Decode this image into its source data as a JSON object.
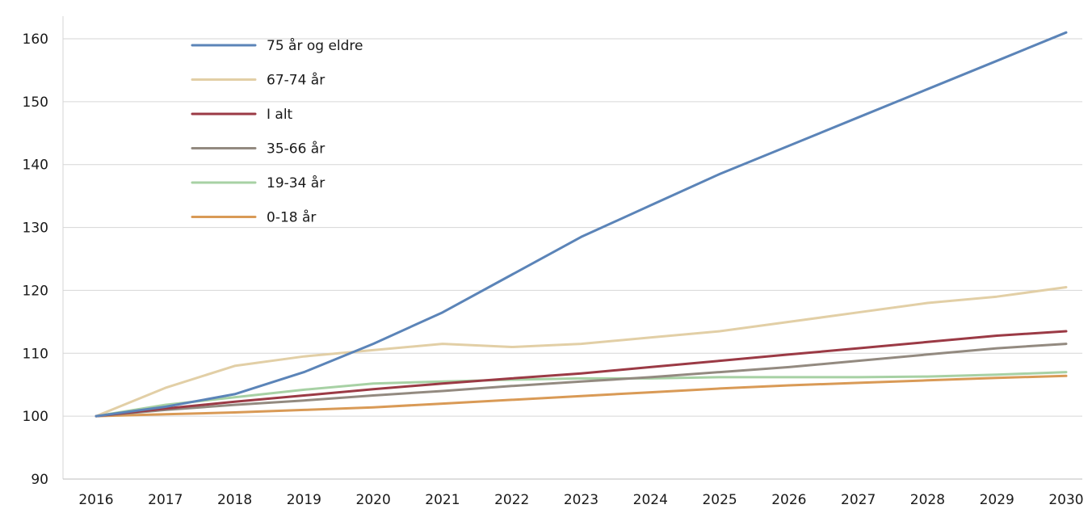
{
  "chart_data": {
    "type": "line",
    "title": "",
    "xlabel": "",
    "ylabel": "",
    "ylim": [
      90,
      160
    ],
    "yticks": [
      90,
      100,
      110,
      120,
      130,
      140,
      150,
      160
    ],
    "grid": "horizontal",
    "legend_placement": "top-left",
    "categories": [
      "2016",
      "2017",
      "2018",
      "2019",
      "2020",
      "2021",
      "2022",
      "2023",
      "2024",
      "2025",
      "2026",
      "2027",
      "2028",
      "2029",
      "2030"
    ],
    "series": [
      {
        "name": "75 år og eldre",
        "color": "#5b84b8",
        "values": [
          100,
          101.5,
          103.5,
          107,
          111.5,
          116.5,
          122.5,
          128.5,
          133.5,
          138.5,
          143,
          147.5,
          152,
          156.5,
          161
        ]
      },
      {
        "name": "67-74 år",
        "color": "#e2cfa6",
        "values": [
          100,
          104.5,
          108,
          109.5,
          110.5,
          111.5,
          111,
          111.5,
          112.5,
          113.5,
          115,
          116.5,
          118,
          119,
          120.5
        ]
      },
      {
        "name": "I alt",
        "color": "#9b3a45",
        "values": [
          100,
          101.2,
          102.3,
          103.3,
          104.3,
          105.2,
          106,
          106.8,
          107.8,
          108.8,
          109.8,
          110.8,
          111.8,
          112.8,
          113.5
        ]
      },
      {
        "name": "35-66 år",
        "color": "#938a80",
        "values": [
          100,
          101,
          101.8,
          102.5,
          103.3,
          104,
          104.8,
          105.5,
          106.2,
          107,
          107.8,
          108.8,
          109.8,
          110.8,
          111.5
        ]
      },
      {
        "name": "19-34 år",
        "color": "#a7d1a4",
        "values": [
          100,
          101.8,
          103,
          104.2,
          105.2,
          105.5,
          105.8,
          106,
          106,
          106.2,
          106.2,
          106.2,
          106.3,
          106.6,
          107
        ]
      },
      {
        "name": "0-18 år",
        "color": "#d99a56",
        "values": [
          100,
          100.3,
          100.6,
          101,
          101.4,
          102,
          102.6,
          103.2,
          103.8,
          104.4,
          104.9,
          105.3,
          105.7,
          106.1,
          106.4
        ]
      }
    ]
  }
}
